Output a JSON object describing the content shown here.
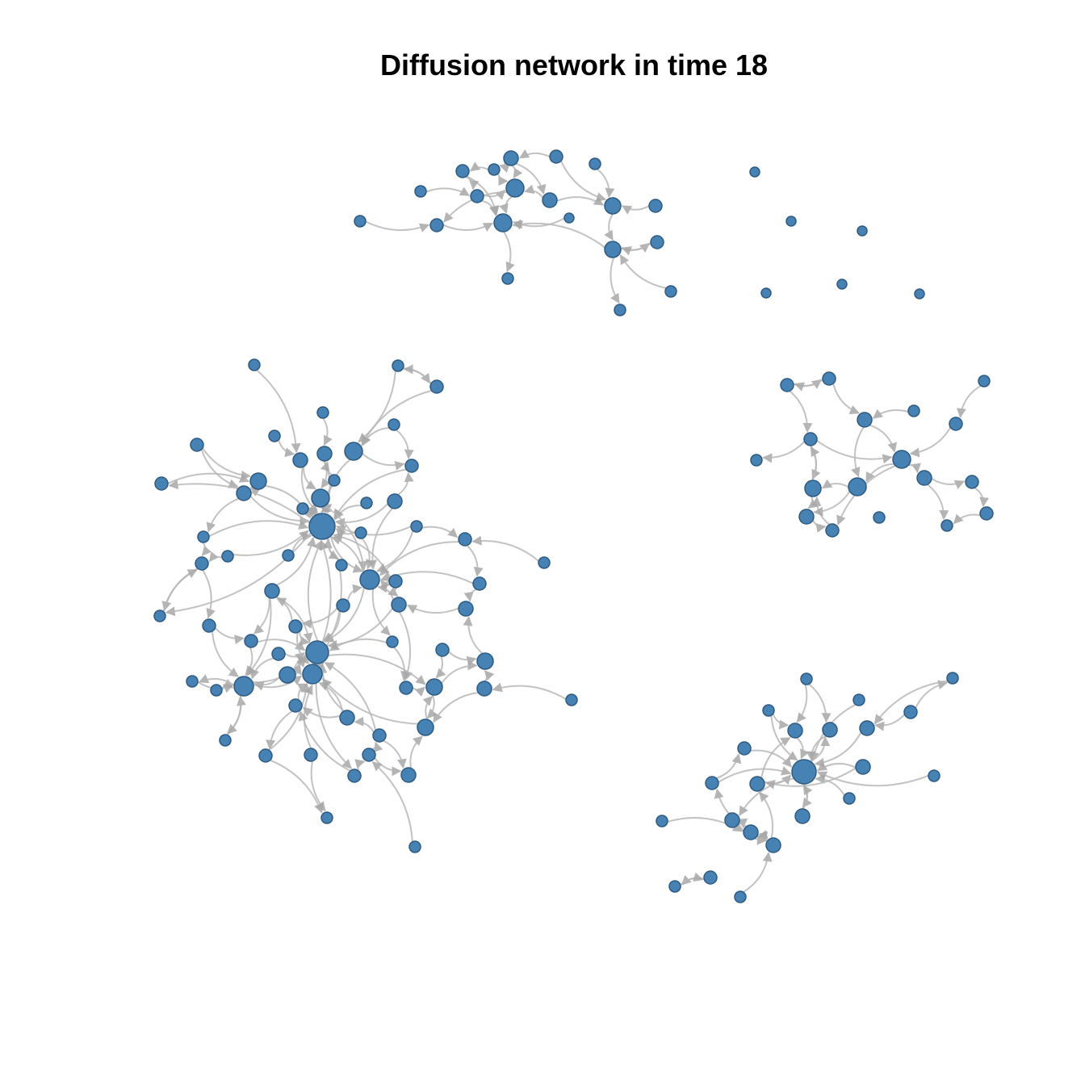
{
  "title": "Diffusion network in time 18",
  "colors": {
    "node_fill": "#4682b4",
    "node_stroke": "#2e5a80",
    "edge": "#b8b8b8",
    "background": "#ffffff"
  },
  "graph": {
    "directed": true,
    "node_size_encodes": "in-degree",
    "components": [
      {
        "id": "left",
        "node_count": 66
      },
      {
        "id": "top",
        "node_count": 20
      },
      {
        "id": "right",
        "node_count": 17
      },
      {
        "id": "bottom-right",
        "node_count": 23
      },
      {
        "id": "isolates",
        "node_count": 7
      }
    ]
  }
}
